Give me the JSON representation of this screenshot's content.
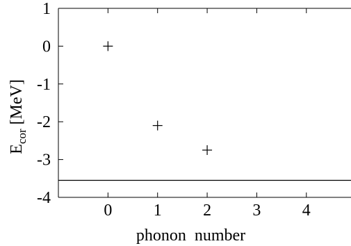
{
  "chart_data": {
    "type": "scatter",
    "title": "",
    "xlabel": "phonon  number",
    "ylabel_main": "E",
    "ylabel_sub": "cor",
    "ylabel_unit": " [MeV]",
    "xlim": [
      -1,
      4.9
    ],
    "ylim": [
      -4,
      1
    ],
    "xticks": [
      {
        "value": 0,
        "label": "0"
      },
      {
        "value": 1,
        "label": "1"
      },
      {
        "value": 2,
        "label": "2"
      },
      {
        "value": 3,
        "label": "3"
      },
      {
        "value": 4,
        "label": "4"
      }
    ],
    "yticks": [
      {
        "value": 1,
        "label": "1"
      },
      {
        "value": 0,
        "label": "0"
      },
      {
        "value": -1,
        "label": "-1"
      },
      {
        "value": -2,
        "label": "-2"
      },
      {
        "value": -3,
        "label": "-3"
      },
      {
        "value": -4,
        "label": "-4"
      }
    ],
    "series": [
      {
        "marker": "plus",
        "x": [
          0,
          1,
          2
        ],
        "y": [
          0,
          -2.1,
          -2.75
        ]
      }
    ],
    "reference_lines": [
      {
        "orientation": "horizontal",
        "y": -3.55
      }
    ],
    "grid": false,
    "legend": "none",
    "color": "#000000"
  }
}
